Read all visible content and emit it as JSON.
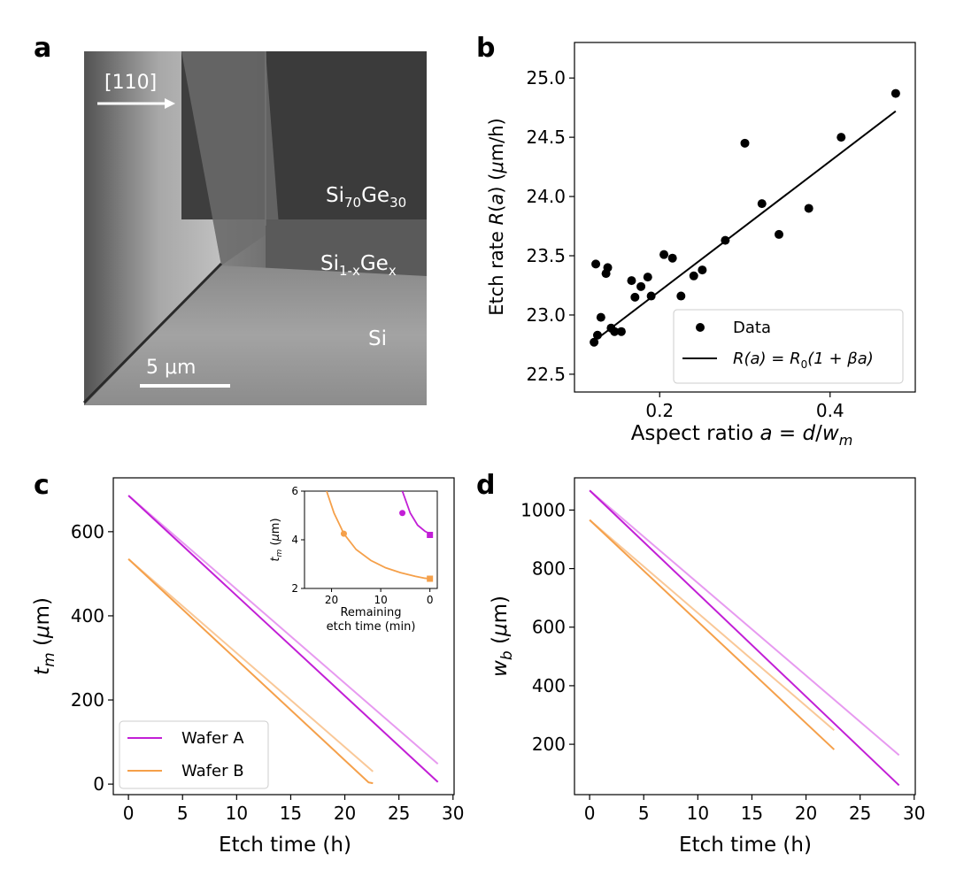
{
  "panels": {
    "a": "a",
    "b": "b",
    "c": "c",
    "d": "d"
  },
  "sem": {
    "direction_label": "[110]",
    "layer_top": {
      "base": "Si",
      "sub1": "70",
      "mid": "Ge",
      "sub2": "30"
    },
    "layer_mid": {
      "base": "Si",
      "sub1": "1-x",
      "mid": "Ge",
      "sub2": "x"
    },
    "layer_bottom": "Si",
    "scale_bar": "5 μm"
  },
  "colors": {
    "wafer_a": "#c21fd6",
    "wafer_a_light": "#e79af0",
    "wafer_b": "#f5a04a",
    "wafer_b_light": "#f9c898",
    "data_point": "#000000"
  },
  "chart_data": [
    {
      "id": "b",
      "type": "scatter",
      "xlabel": "Aspect ratio a = d/w_m",
      "ylabel": "Etch rate R(a) (μm/h)",
      "xlim": [
        0.1,
        0.5
      ],
      "ylim": [
        22.35,
        25.3
      ],
      "xticks": [
        0.2,
        0.4
      ],
      "yticks": [
        22.5,
        23.0,
        23.5,
        24.0,
        24.5,
        25.0
      ],
      "points": [
        [
          0.123,
          22.77
        ],
        [
          0.125,
          23.43
        ],
        [
          0.127,
          22.83
        ],
        [
          0.131,
          22.98
        ],
        [
          0.137,
          23.35
        ],
        [
          0.139,
          23.4
        ],
        [
          0.143,
          22.89
        ],
        [
          0.147,
          22.86
        ],
        [
          0.155,
          22.86
        ],
        [
          0.167,
          23.29
        ],
        [
          0.171,
          23.15
        ],
        [
          0.178,
          23.24
        ],
        [
          0.186,
          23.32
        ],
        [
          0.19,
          23.16
        ],
        [
          0.205,
          23.51
        ],
        [
          0.215,
          23.48
        ],
        [
          0.225,
          23.16
        ],
        [
          0.24,
          23.33
        ],
        [
          0.25,
          23.38
        ],
        [
          0.277,
          23.63
        ],
        [
          0.3,
          24.45
        ],
        [
          0.32,
          23.94
        ],
        [
          0.34,
          23.68
        ],
        [
          0.375,
          23.9
        ],
        [
          0.413,
          24.5
        ],
        [
          0.477,
          24.87
        ]
      ],
      "fit": {
        "x": [
          0.123,
          0.477
        ],
        "y": [
          22.78,
          24.72
        ]
      },
      "legend": {
        "data": "Data",
        "fit": "R(a) = R0(1 + βa)",
        "placement": "lower-right"
      }
    },
    {
      "id": "c",
      "type": "line",
      "xlabel": "Etch time (h)",
      "ylabel": "t_m (μm)",
      "xlim": [
        -1.4,
        30.1
      ],
      "ylim": [
        -25,
        728
      ],
      "xticks": [
        0,
        5,
        10,
        15,
        20,
        25,
        30
      ],
      "yticks": [
        0,
        200,
        400,
        600
      ],
      "series": [
        {
          "name": "Wafer A",
          "role": "main",
          "x": [
            0,
            28.6
          ],
          "y": [
            686,
            5
          ]
        },
        {
          "name": "Wafer A (extrapolated)",
          "role": "light",
          "x": [
            0,
            28.6
          ],
          "y": [
            686,
            48
          ]
        },
        {
          "name": "Wafer B",
          "role": "main",
          "x": [
            0,
            22.2,
            22.6
          ],
          "y": [
            535,
            4,
            2
          ]
        },
        {
          "name": "Wafer B (extrapolated)",
          "role": "light",
          "x": [
            0,
            22.6
          ],
          "y": [
            535,
            30
          ]
        }
      ],
      "legend": {
        "a": "Wafer A",
        "b": "Wafer B",
        "placement": "lower-left"
      },
      "inset": {
        "xlabel_line1": "Remaining",
        "xlabel_line2": "etch time (min)",
        "ylabel": "t_m (μm)",
        "xlim": [
          25.5,
          -1.5
        ],
        "ylim": [
          2,
          6
        ],
        "xticks": [
          20,
          10,
          0
        ],
        "yticks": [
          2,
          4,
          6
        ],
        "wafer_a": {
          "x": [
            5.6,
            4,
            2.5,
            1,
            0
          ],
          "y": [
            6.0,
            5.1,
            4.6,
            4.35,
            4.25
          ],
          "circle": [
            5.6,
            5.1
          ],
          "square": [
            0,
            4.2
          ]
        },
        "wafer_b": {
          "x": [
            21,
            19.5,
            17.5,
            15,
            12,
            9,
            6,
            3,
            1,
            0
          ],
          "y": [
            6.0,
            5.1,
            4.25,
            3.6,
            3.15,
            2.85,
            2.65,
            2.5,
            2.42,
            2.4
          ],
          "circle": [
            17.5,
            4.25
          ],
          "square": [
            0,
            2.4
          ]
        }
      }
    },
    {
      "id": "d",
      "type": "line",
      "xlabel": "Etch time (h)",
      "ylabel": "w_b (μm)",
      "xlim": [
        -1.4,
        30.1
      ],
      "ylim": [
        28,
        1110
      ],
      "xticks": [
        0,
        5,
        10,
        15,
        20,
        25,
        30
      ],
      "yticks": [
        200,
        400,
        600,
        800,
        1000
      ],
      "series": [
        {
          "name": "Wafer A",
          "role": "main",
          "x": [
            0,
            28.6
          ],
          "y": [
            1067,
            60
          ]
        },
        {
          "name": "Wafer A (extrapolated)",
          "role": "light",
          "x": [
            0,
            28.6
          ],
          "y": [
            1067,
            163
          ]
        },
        {
          "name": "Wafer B",
          "role": "main",
          "x": [
            0,
            22.6
          ],
          "y": [
            966,
            182
          ]
        },
        {
          "name": "Wafer B (extrapolated)",
          "role": "light",
          "x": [
            0,
            22.6
          ],
          "y": [
            966,
            248
          ]
        }
      ]
    }
  ]
}
